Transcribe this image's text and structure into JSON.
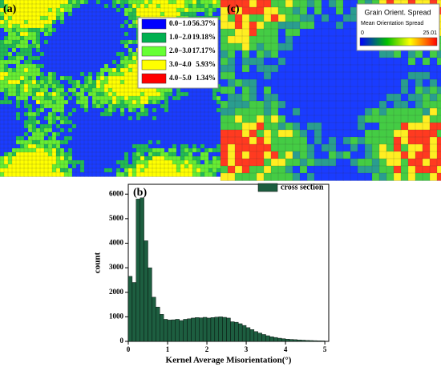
{
  "chart_data": {
    "type": "histogram",
    "panel_label": "(b)",
    "xlabel": "Kernel Average Misorientation(°)",
    "ylabel": "count",
    "series": [
      {
        "name": "cross section",
        "color": "#1d5e40",
        "values": [
          2650,
          2400,
          5800,
          5850,
          4100,
          3000,
          1800,
          1400,
          1100,
          900,
          870,
          880,
          900,
          850,
          900,
          920,
          950,
          970,
          960,
          980,
          950,
          970,
          990,
          1000,
          980,
          950,
          800,
          780,
          720,
          650,
          560,
          480,
          400,
          340,
          280,
          230,
          190,
          160,
          130,
          110,
          90,
          80,
          70,
          60,
          50,
          40,
          35,
          30,
          25,
          20
        ]
      }
    ],
    "bins": [
      0,
      0.1,
      0.2,
      0.3,
      0.4,
      0.5,
      0.6,
      0.7,
      0.8,
      0.9,
      1,
      1.1,
      1.2,
      1.3,
      1.4,
      1.5,
      1.6,
      1.7,
      1.8,
      1.9,
      2,
      2.1,
      2.2,
      2.3,
      2.4,
      2.5,
      2.6,
      2.7,
      2.8,
      2.9,
      3,
      3.1,
      3.2,
      3.3,
      3.4,
      3.5,
      3.6,
      3.7,
      3.8,
      3.9,
      4,
      4.1,
      4.2,
      4.3,
      4.4,
      4.5,
      4.6,
      4.7,
      4.8,
      4.9,
      5
    ],
    "xlim": [
      0,
      5.1
    ],
    "ylim": [
      0,
      6400
    ],
    "xticks": [
      0,
      1,
      2,
      3,
      4,
      5
    ],
    "yticks": [
      0,
      1000,
      2000,
      3000,
      4000,
      5000,
      6000
    ]
  },
  "maps": [
    {
      "panel_label": "(a)",
      "legend": [
        {
          "range": "0.0−1.0",
          "percent": "56.37%",
          "color": "#0000ff"
        },
        {
          "range": "1.0−2.0",
          "percent": "19.18%",
          "color": "#00b050"
        },
        {
          "range": "2.0−3.0",
          "percent": "17.17%",
          "color": "#66ff33"
        },
        {
          "range": "3.0−4.0",
          "percent": "5.93%",
          "color": "#ffff00"
        },
        {
          "range": "4.0−5.0",
          "percent": "1.34%",
          "color": "#ff0000"
        }
      ]
    },
    {
      "panel_label": "(c)",
      "legend_title": "Grain Orient. Spread",
      "colorbar_label": "Mean Orientation Spread",
      "colorbar_min": "0",
      "colorbar_max": "25.01"
    }
  ]
}
